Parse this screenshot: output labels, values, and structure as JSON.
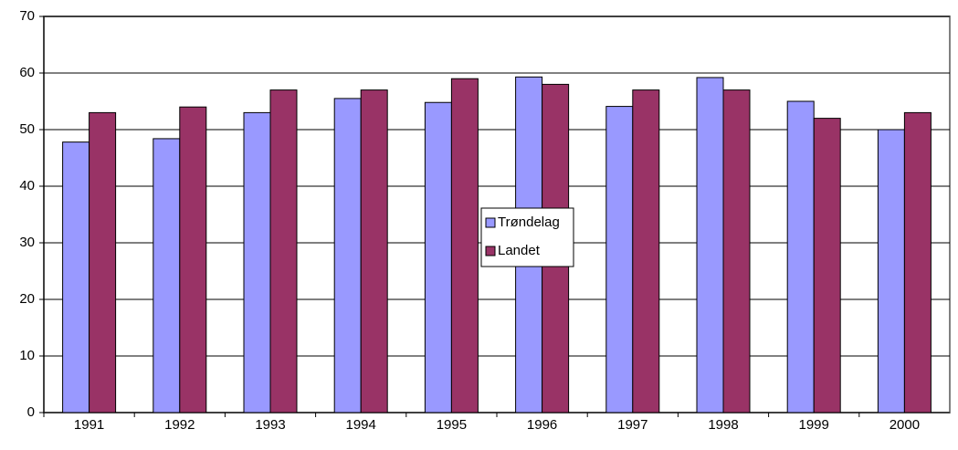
{
  "chart_data": {
    "type": "bar",
    "categories": [
      "1991",
      "1992",
      "1993",
      "1994",
      "1995",
      "1996",
      "1997",
      "1998",
      "1999",
      "2000"
    ],
    "series": [
      {
        "name": "Trøndelag",
        "color": "#9999ff",
        "values": [
          47.8,
          48.4,
          53,
          55.5,
          54.8,
          59.3,
          54.1,
          59.2,
          55,
          50
        ]
      },
      {
        "name": "Landet",
        "color": "#993366",
        "values": [
          53,
          54,
          57,
          57,
          59,
          58,
          57,
          57,
          52,
          53
        ]
      }
    ],
    "ylim": [
      0,
      70
    ],
    "yticks": [
      0,
      10,
      20,
      30,
      40,
      50,
      60,
      70
    ],
    "grid": true,
    "legend": "center"
  }
}
